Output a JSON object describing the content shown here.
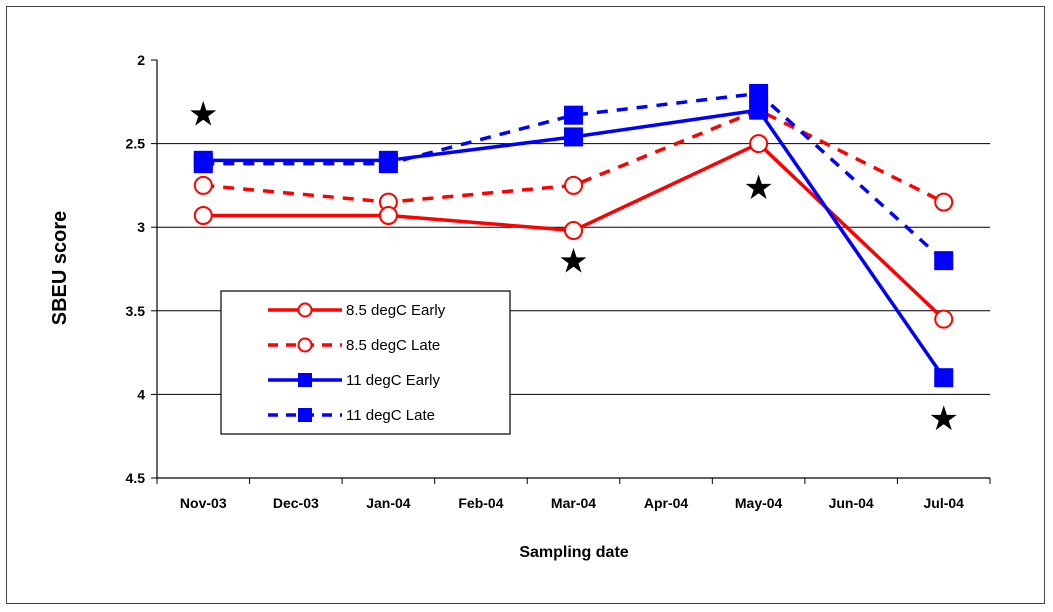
{
  "chart_data": {
    "type": "line",
    "xlabel": "Sampling date",
    "ylabel": "SBEU score",
    "categories": [
      "Nov-03",
      "Dec-03",
      "Jan-04",
      "Feb-04",
      "Mar-04",
      "Apr-04",
      "May-04",
      "Jun-04",
      "Jul-04"
    ],
    "yticks": [
      "2",
      "2.5",
      "3",
      "3.5",
      "4",
      "4.5"
    ],
    "ylim": [
      2,
      4.5
    ],
    "y_reversed": true,
    "grid": "horizontal major gridlines",
    "legend_position": "left, inside plot area",
    "series": [
      {
        "name": "8.5 degC Early",
        "color": "#ff0000",
        "dash": "solid",
        "marker": "open-circle",
        "x": [
          "Nov-03",
          "Jan-04",
          "Mar-04",
          "May-04",
          "Jul-04"
        ],
        "values": [
          2.93,
          2.93,
          3.02,
          2.5,
          3.55
        ]
      },
      {
        "name": "8.5 degC Late",
        "color": "#ff0000",
        "dash": "dashed",
        "marker": "open-circle",
        "x": [
          "Nov-03",
          "Jan-04",
          "Mar-04",
          "May-04",
          "Jul-04"
        ],
        "values": [
          2.75,
          2.85,
          2.75,
          2.3,
          2.85
        ]
      },
      {
        "name": "11 degC Early",
        "color": "#0000ff",
        "dash": "solid",
        "marker": "filled-square",
        "x": [
          "Nov-03",
          "Jan-04",
          "Mar-04",
          "May-04",
          "Jul-04"
        ],
        "values": [
          2.6,
          2.6,
          2.46,
          2.3,
          3.9
        ]
      },
      {
        "name": "11 degC Late",
        "color": "#0000ff",
        "dash": "dashed",
        "marker": "filled-square",
        "x": [
          "Nov-03",
          "Jan-04",
          "Mar-04",
          "May-04",
          "Jul-04"
        ],
        "values": [
          2.62,
          2.62,
          2.33,
          2.2,
          3.2
        ]
      }
    ],
    "annotations": [
      {
        "text": "★",
        "meaning": "significance-star",
        "x": "Nov-03",
        "y": 2.32
      },
      {
        "text": "★",
        "meaning": "significance-star",
        "x": "Mar-04",
        "y": 3.2
      },
      {
        "text": "★",
        "meaning": "significance-star",
        "x": "May-04",
        "y": 2.76
      },
      {
        "text": "★",
        "meaning": "significance-star",
        "x": "Jul-04",
        "y": 4.14
      }
    ]
  }
}
